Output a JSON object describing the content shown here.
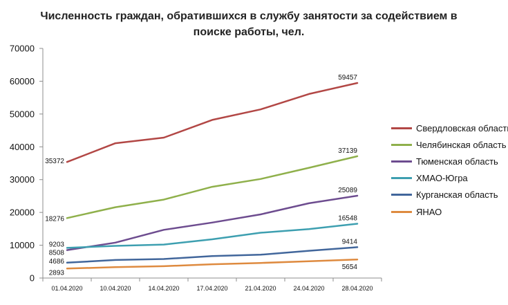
{
  "chart_data": {
    "type": "line",
    "title": "Численность граждан, обратившихся в службу занятости за содействием в поиске работы, чел.",
    "xlabel": "",
    "ylabel": "",
    "categories": [
      "01.04.2020",
      "10.04.2020",
      "14.04.2020",
      "17.04.2020",
      "21.04.2020",
      "24.04.2020",
      "28.04.2020"
    ],
    "ylim": [
      0,
      70000
    ],
    "yticks": [
      0,
      10000,
      20000,
      30000,
      40000,
      50000,
      60000,
      70000
    ],
    "grid": false,
    "legend_position": "right",
    "series": [
      {
        "name": "Свердловская область",
        "color": "#b24745",
        "values": [
          35372,
          41100,
          42800,
          48200,
          51400,
          56100,
          59457
        ],
        "labels": {
          "first": "35372",
          "last": "59457"
        }
      },
      {
        "name": "Челябинская область",
        "color": "#8fb04b",
        "values": [
          18276,
          21600,
          23900,
          27800,
          30200,
          33600,
          37139
        ],
        "labels": {
          "first": "18276",
          "last": "37139"
        }
      },
      {
        "name": "Тюменская область",
        "color": "#6d4c8f",
        "values": [
          8508,
          10800,
          14700,
          16900,
          19400,
          22800,
          25089
        ],
        "labels": {
          "first": "8508",
          "last": "25089"
        }
      },
      {
        "name": "ХМАО-Югра",
        "color": "#3d9fb0",
        "values": [
          9203,
          9800,
          10200,
          11800,
          13800,
          14900,
          16548
        ],
        "labels": {
          "first": "9203",
          "last": "16548"
        }
      },
      {
        "name": "Курганская область",
        "color": "#41669b",
        "values": [
          4686,
          5500,
          5800,
          6700,
          7100,
          8300,
          9414
        ],
        "labels": {
          "first": "4686",
          "last": "9414"
        }
      },
      {
        "name": "ЯНАО",
        "color": "#de8a3f",
        "values": [
          2893,
          3300,
          3600,
          4200,
          4600,
          5100,
          5654
        ],
        "labels": {
          "first": "2893",
          "last": "5654"
        }
      }
    ]
  }
}
